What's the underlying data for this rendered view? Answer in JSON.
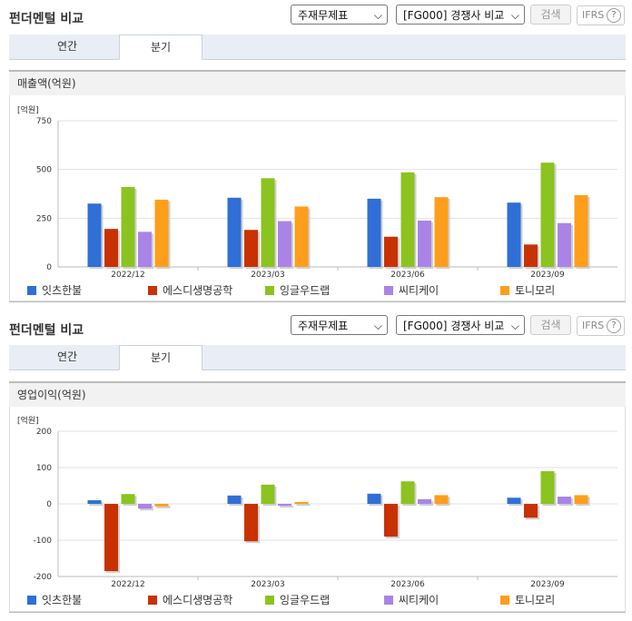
{
  "panels": [
    {
      "title": "펀더멘털 비교",
      "select1": "주재무제표",
      "select2": "[FG000] 경쟁사 비교",
      "search_label": "검색",
      "ifrs_label": "IFRS",
      "help_label": "?",
      "tabs": [
        "연간",
        "분기"
      ],
      "active_tab": "분기",
      "box_title": "매출액(억원)"
    },
    {
      "title": "펀더멘털 비교",
      "select1": "주재무제표",
      "select2": "[FG000] 경쟁사 비교",
      "search_label": "검색",
      "ifrs_label": "IFRS",
      "help_label": "?",
      "tabs": [
        "연간",
        "분기"
      ],
      "active_tab": "분기",
      "box_title": "영업이익(억원)"
    }
  ],
  "chart_data": [
    {
      "type": "bar",
      "unit_label": "[억원]",
      "categories": [
        "2022/12",
        "2023/03",
        "2023/06",
        "2023/09"
      ],
      "ylim": [
        0,
        750
      ],
      "yticks": [
        0,
        250,
        500,
        750
      ],
      "series": [
        {
          "name": "잇츠한불",
          "color": "#2f6fd6",
          "values": [
            325,
            355,
            350,
            330
          ]
        },
        {
          "name": "에스디생명공학",
          "color": "#c83200",
          "values": [
            195,
            190,
            155,
            115
          ]
        },
        {
          "name": "잉글우드랩",
          "color": "#8bc320",
          "values": [
            410,
            455,
            485,
            535
          ]
        },
        {
          "name": "씨티케이",
          "color": "#a984e6",
          "values": [
            180,
            235,
            238,
            225
          ]
        },
        {
          "name": "토니모리",
          "color": "#ff9e1a",
          "values": [
            345,
            310,
            358,
            368
          ]
        }
      ]
    },
    {
      "type": "bar",
      "unit_label": "[억원]",
      "categories": [
        "2022/12",
        "2023/03",
        "2023/06",
        "2023/09"
      ],
      "ylim": [
        -200,
        200
      ],
      "yticks": [
        -200,
        -100,
        0,
        100,
        200
      ],
      "series": [
        {
          "name": "잇츠한불",
          "color": "#2f6fd6",
          "values": [
            10,
            23,
            28,
            17
          ]
        },
        {
          "name": "에스디생명공학",
          "color": "#c83200",
          "values": [
            -185,
            -103,
            -90,
            -38
          ]
        },
        {
          "name": "잉글우드랩",
          "color": "#8bc320",
          "values": [
            27,
            53,
            62,
            90
          ]
        },
        {
          "name": "씨티케이",
          "color": "#a984e6",
          "values": [
            -13,
            -5,
            13,
            20
          ]
        },
        {
          "name": "토니모리",
          "color": "#ff9e1a",
          "values": [
            -7,
            5,
            24,
            24
          ]
        }
      ]
    }
  ]
}
